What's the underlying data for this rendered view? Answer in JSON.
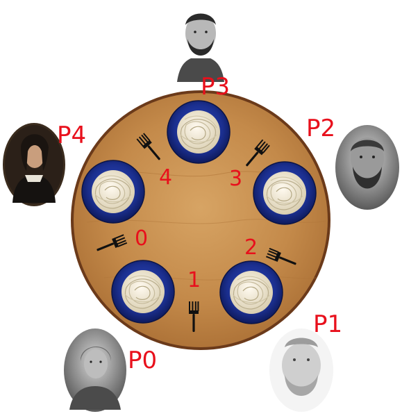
{
  "philosophers": [
    {
      "label": "P0"
    },
    {
      "label": "P1"
    },
    {
      "label": "P2"
    },
    {
      "label": "P3"
    },
    {
      "label": "P4"
    }
  ],
  "forks": [
    {
      "label": "0"
    },
    {
      "label": "1"
    },
    {
      "label": "2"
    },
    {
      "label": "3"
    },
    {
      "label": "4"
    }
  ],
  "colors": {
    "label_red": "#e8101c",
    "table_wood": "#c48a4a",
    "table_rim": "#6b3a1a",
    "plate_blue": "#1b2f8f",
    "noodle": "#f3ecd8"
  },
  "icons": {
    "fork": "fork-icon",
    "plate": "spaghetti-plate-icon",
    "portrait": "philosopher-portrait-icon"
  }
}
